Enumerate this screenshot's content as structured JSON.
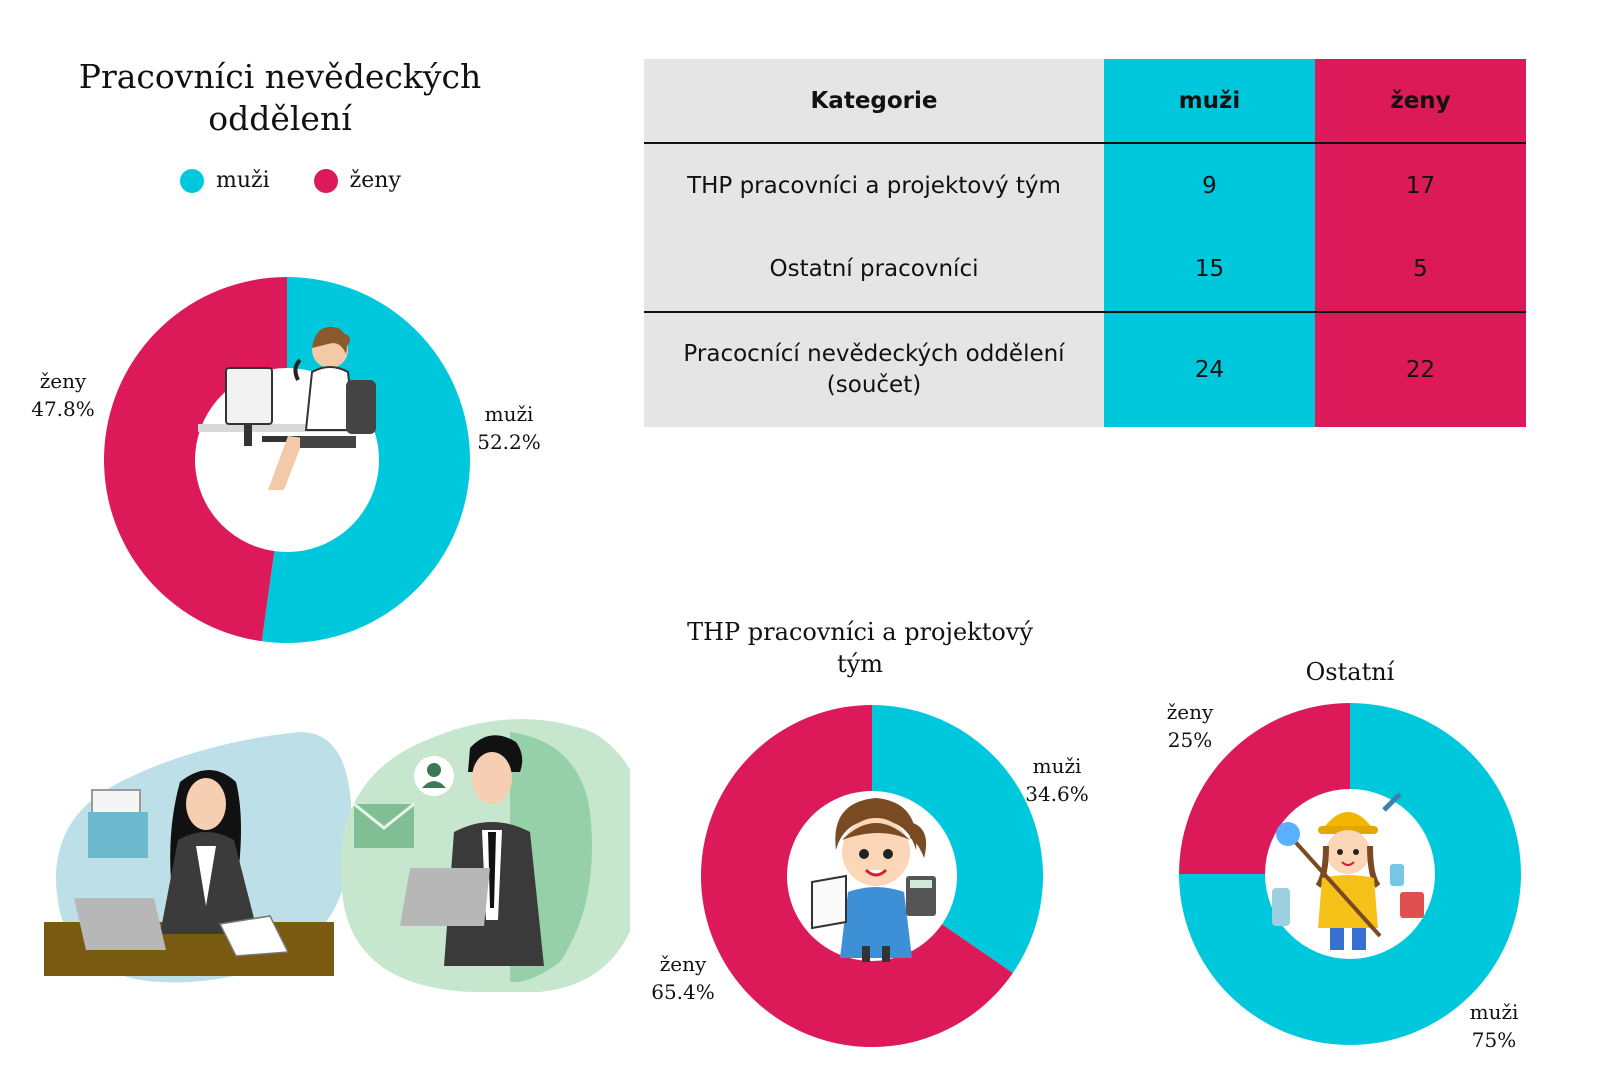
{
  "colors": {
    "muzi": "#00C8DC",
    "zeny": "#DC1A5A",
    "table_bg": "#E5E5E5"
  },
  "main_chart": {
    "title": "Pracovníci nevědeckých oddělení",
    "legend": [
      {
        "label": "muži"
      },
      {
        "label": "ženy"
      }
    ],
    "illustration": "woman-at-office-desk-illustration"
  },
  "table": {
    "headers": [
      "Kategorie",
      "muži",
      "ženy"
    ],
    "rows": [
      {
        "category": "THP pracovníci a projektový tým",
        "muzi": "9",
        "zeny": "17"
      },
      {
        "category": "Ostatní pracovníci",
        "muzi": "15",
        "zeny": "5"
      },
      {
        "category": "Pracocnící nevědeckých oddělení (součet)",
        "muzi": "24",
        "zeny": "22"
      }
    ]
  },
  "thp_chart": {
    "title": "THP pracovníci a projektový tým",
    "illustration": "girl-with-book-and-calculator-illustration"
  },
  "ostatni_chart": {
    "title": "Ostatní",
    "illustration": "cleaner-with-supplies-illustration"
  },
  "decorations": [
    "businesswoman-at-laptop-illustration",
    "businessman-with-laptop-illustration"
  ],
  "chart_data": [
    {
      "type": "pie",
      "title": "Pracovníci nevědeckých oddělení",
      "categories": [
        "muži",
        "ženy"
      ],
      "values": [
        52.2,
        47.8
      ],
      "labels": [
        {
          "name": "muži",
          "value": "52.2%"
        },
        {
          "name": "ženy",
          "value": "47.8%"
        }
      ]
    },
    {
      "type": "pie",
      "title": "THP pracovníci a projektový tým",
      "categories": [
        "muži",
        "ženy"
      ],
      "values": [
        34.6,
        65.4
      ],
      "labels": [
        {
          "name": "muži",
          "value": "34.6%"
        },
        {
          "name": "ženy",
          "value": "65.4%"
        }
      ]
    },
    {
      "type": "pie",
      "title": "Ostatní",
      "categories": [
        "muži",
        "ženy"
      ],
      "values": [
        75,
        25
      ],
      "labels": [
        {
          "name": "muži",
          "value": "75%"
        },
        {
          "name": "ženy",
          "value": "25%"
        }
      ]
    }
  ]
}
